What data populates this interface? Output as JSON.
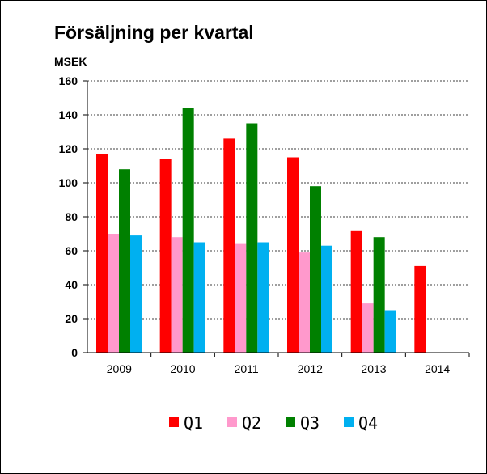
{
  "chart_data": {
    "type": "bar",
    "title": "Försäljning per kvartal",
    "unit_label": "MSEK",
    "categories": [
      "2009",
      "2010",
      "2011",
      "2012",
      "2013",
      "2014"
    ],
    "ylim": [
      0,
      160
    ],
    "yticks": [
      "0",
      "20",
      "40",
      "60",
      "80",
      "100",
      "120",
      "140",
      "160"
    ],
    "grid": true,
    "legend_position": "bottom",
    "series": [
      {
        "name": "Q1",
        "color": "#ff0000",
        "values": [
          117,
          114,
          126,
          115,
          72,
          51
        ]
      },
      {
        "name": "Q2",
        "color": "#ff99cc",
        "values": [
          70,
          68,
          64,
          59,
          29,
          null
        ]
      },
      {
        "name": "Q3",
        "color": "#008000",
        "values": [
          108,
          144,
          135,
          98,
          68,
          null
        ]
      },
      {
        "name": "Q4",
        "color": "#00b0f0",
        "values": [
          69,
          65,
          65,
          63,
          25,
          null
        ]
      }
    ]
  }
}
